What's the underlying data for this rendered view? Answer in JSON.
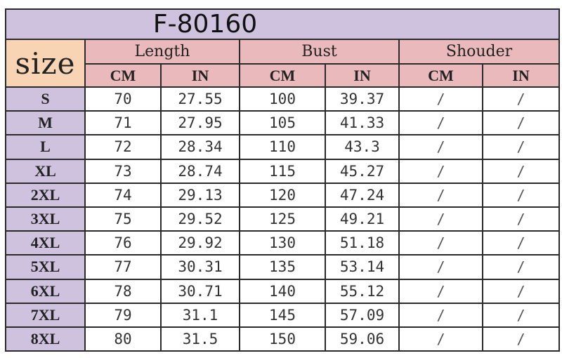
{
  "title": "F-80160",
  "header": {
    "size_label": "size",
    "groups": [
      "Length",
      "Bust",
      "Shouder"
    ],
    "units": [
      "CM",
      "IN",
      "CM",
      "IN",
      "CM",
      "IN"
    ]
  },
  "colors": {
    "title_bg": "#cfc2de",
    "size_header_bg": "#f8d4b4",
    "group_header_bg": "#e9b9bb",
    "size_column_bg": "#cfc2de"
  },
  "rows": [
    {
      "size": "S",
      "cells": [
        "70",
        "27.55",
        "100",
        "39.37",
        "/",
        "/"
      ]
    },
    {
      "size": "M",
      "cells": [
        "71",
        "27.95",
        "105",
        "41.33",
        "/",
        "/"
      ]
    },
    {
      "size": "L",
      "cells": [
        "72",
        "28.34",
        "110",
        "43.3",
        "/",
        "/"
      ]
    },
    {
      "size": "XL",
      "cells": [
        "73",
        "28.74",
        "115",
        "45.27",
        "/",
        "/"
      ]
    },
    {
      "size": "2XL",
      "cells": [
        "74",
        "29.13",
        "120",
        "47.24",
        "/",
        "/"
      ]
    },
    {
      "size": "3XL",
      "cells": [
        "75",
        "29.52",
        "125",
        "49.21",
        "/",
        "/"
      ]
    },
    {
      "size": "4XL",
      "cells": [
        "76",
        "29.92",
        "130",
        "51.18",
        "/",
        "/"
      ]
    },
    {
      "size": "5XL",
      "cells": [
        "77",
        "30.31",
        "135",
        "53.14",
        "/",
        "/"
      ]
    },
    {
      "size": "6XL",
      "cells": [
        "78",
        "30.71",
        "140",
        "55.12",
        "/",
        "/"
      ]
    },
    {
      "size": "7XL",
      "cells": [
        "79",
        "31.1",
        "145",
        "57.09",
        "/",
        "/"
      ]
    },
    {
      "size": "8XL",
      "cells": [
        "80",
        "31.5",
        "150",
        "59.06",
        "/",
        "/"
      ]
    }
  ]
}
